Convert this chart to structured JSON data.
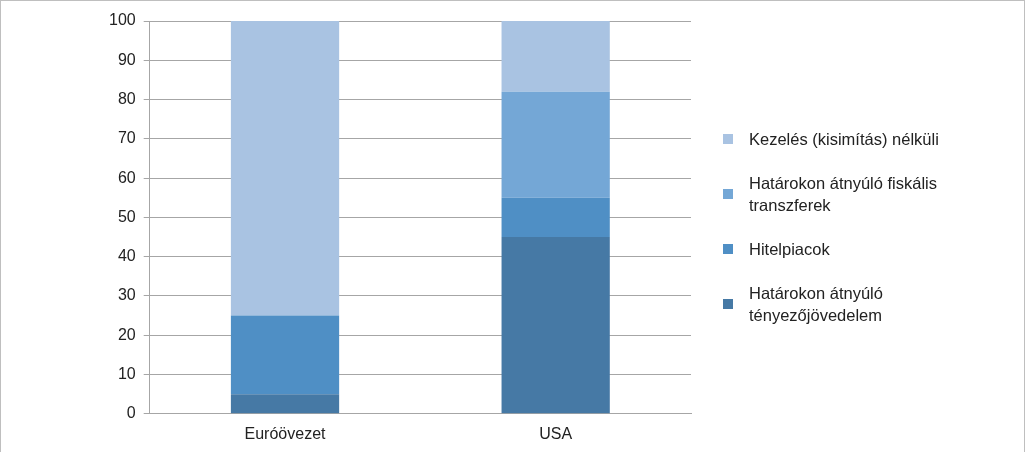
{
  "chart_data": {
    "type": "bar",
    "stacked": true,
    "categories": [
      "Euróövezet",
      "USA"
    ],
    "series": [
      {
        "name": "Határokon átnyúló tényezőjövedelem",
        "color": "#4679a5",
        "values": [
          5,
          45
        ]
      },
      {
        "name": "Hitelpiacok",
        "color": "#4f8fc5",
        "values": [
          20,
          10
        ]
      },
      {
        "name": "Határokon átnyúló fiskális transzferek",
        "color": "#74a7d6",
        "values": [
          0,
          27
        ]
      },
      {
        "name": "Kezelés (kisimítás) nélküli",
        "color": "#a9c3e2",
        "values": [
          75,
          18
        ]
      }
    ],
    "ylim": [
      0,
      100
    ],
    "yticks": [
      0,
      10,
      20,
      30,
      40,
      50,
      60,
      70,
      80,
      90,
      100
    ],
    "grid": "y",
    "legend": "right"
  }
}
